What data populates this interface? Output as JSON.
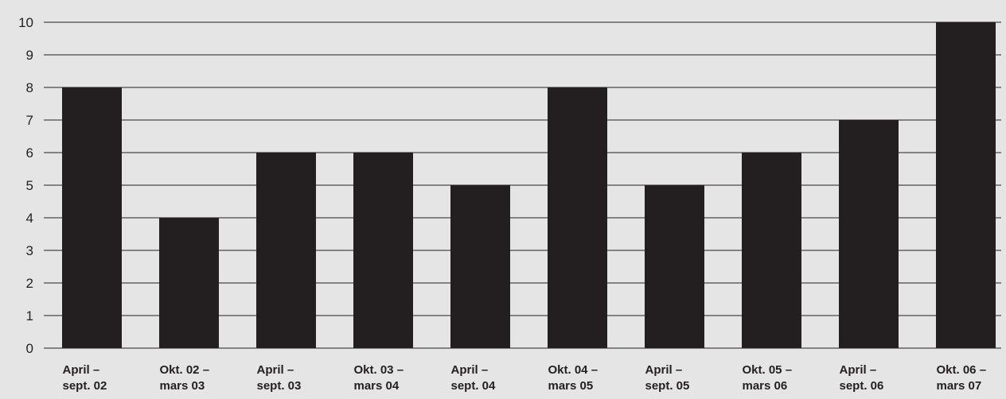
{
  "chart_data": {
    "type": "bar",
    "categories": [
      [
        "April –",
        "sept. 02"
      ],
      [
        "Okt. 02 –",
        "mars 03"
      ],
      [
        "April –",
        "sept. 03"
      ],
      [
        "Okt. 03 –",
        "mars 04"
      ],
      [
        "April –",
        "sept. 04"
      ],
      [
        "Okt. 04 –",
        "mars 05"
      ],
      [
        "April –",
        "sept. 05"
      ],
      [
        "Okt. 05 –",
        "mars 06"
      ],
      [
        "April –",
        "sept. 06"
      ],
      [
        "Okt. 06 –",
        "mars 07"
      ]
    ],
    "values": [
      8,
      4,
      6,
      6,
      5,
      8,
      5,
      6,
      7,
      10
    ],
    "y_ticks": [
      "0",
      "1",
      "2",
      "3",
      "4",
      "5",
      "6",
      "7",
      "8",
      "9",
      "10"
    ],
    "ylim": [
      0,
      10
    ],
    "grid": true,
    "bar_color": "#231f20",
    "grid_color": "#231f20",
    "background_color": "#e6e5e5"
  }
}
